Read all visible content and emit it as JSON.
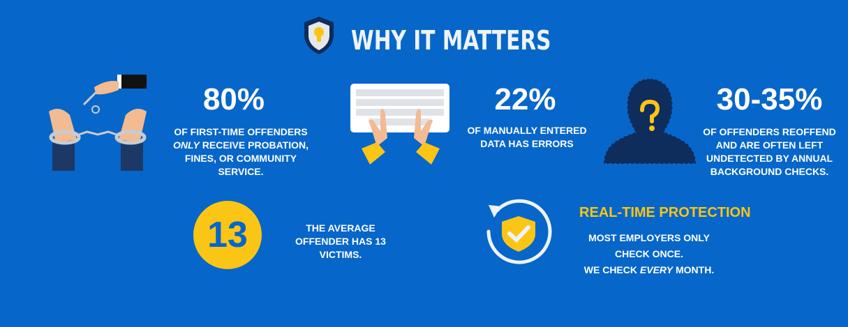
{
  "header": {
    "title": "WHY IT MATTERS",
    "icon": "shield-keyhole-icon"
  },
  "colors": {
    "background": "#0766c9",
    "accent": "#fbc515",
    "navy": "#0e2c5c"
  },
  "stats": [
    {
      "value": "80%",
      "line1": "OF FIRST-TIME OFFENDERS",
      "line2_em": "ONLY",
      "line2_rest": " RECEIVE PROBATION,",
      "line3": "FINES, OR COMMUNITY",
      "line4": "SERVICE.",
      "icon": "handcuffs-key-icon"
    },
    {
      "value": "22%",
      "line1": "OF MANUALLY ENTERED",
      "line2": "DATA HAS ERRORS",
      "icon": "keyboard-typing-icon"
    },
    {
      "value": "30-35%",
      "line1": "OF OFFENDERS REOFFEND",
      "line2": "AND ARE OFTEN LEFT",
      "line3": "UNDETECTED BY ANNUAL",
      "line4": "BACKGROUND CHECKS.",
      "icon": "unknown-person-icon"
    }
  ],
  "victims": {
    "value": "13",
    "line1": "THE AVERAGE",
    "line2": "OFFENDER HAS 13",
    "line3": "VICTIMS."
  },
  "protection": {
    "heading": "REAL-TIME PROTECTION",
    "line1": "MOST EMPLOYERS ONLY",
    "line2": "CHECK ONCE.",
    "line3_a": "WE CHECK ",
    "line3_em": "EVERY",
    "line3_b": " MONTH.",
    "icon": "refresh-shield-check-icon"
  }
}
